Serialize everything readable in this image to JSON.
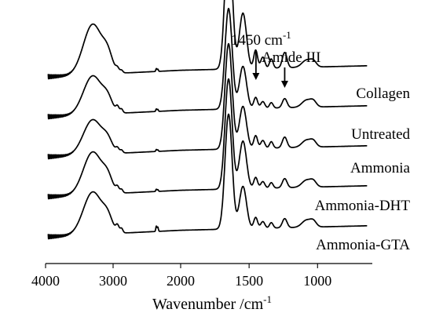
{
  "chart_data": {
    "type": "line",
    "xlabel": "Wavenumber /cm",
    "xlabel_sup": "-1",
    "xlim": [
      4000,
      600
    ],
    "x_reversed": true,
    "x_ticks": [
      4000,
      3000,
      2000,
      1500,
      1000
    ],
    "x_tick_labels": [
      "4000",
      "3000",
      "2000",
      "1500",
      "1000"
    ],
    "y_axis_shown": false,
    "grid": false,
    "series": [
      {
        "name": "Collagen",
        "offset": 4,
        "features": {
          "nh_strength": 1.3,
          "ch_strength": 0.4,
          "co2_strength": 0.5,
          "amide1_strength": 1.45,
          "amide2_strength": 1.05,
          "mid_peak_strength": 1.0
        }
      },
      {
        "name": "Untreated",
        "offset": 3,
        "features": {
          "nh_strength": 1.0,
          "ch_strength": 0.6,
          "co2_strength": 0.45,
          "amide1_strength": 1.05,
          "amide2_strength": 0.8,
          "mid_peak_strength": 0.6
        }
      },
      {
        "name": "Ammonia",
        "offset": 2,
        "features": {
          "nh_strength": 0.9,
          "ch_strength": 0.45,
          "co2_strength": 0.35,
          "amide1_strength": 1.1,
          "amide2_strength": 0.8,
          "mid_peak_strength": 0.7
        }
      },
      {
        "name": "Ammonia-DHT",
        "offset": 1,
        "features": {
          "nh_strength": 1.1,
          "ch_strength": 0.55,
          "co2_strength": 0.4,
          "amide1_strength": 1.15,
          "amide2_strength": 0.9,
          "mid_peak_strength": 0.6
        }
      },
      {
        "name": "Ammonia-GTA",
        "offset": 0,
        "features": {
          "nh_strength": 1.1,
          "ch_strength": 0.7,
          "co2_strength": 0.95,
          "amide1_strength": 1.2,
          "amide2_strength": 0.8,
          "mid_peak_strength": 0.6
        }
      }
    ],
    "annotations": [
      {
        "text": "1450 cm",
        "sup": "-1",
        "x": 1450
      },
      {
        "text": "Amide III",
        "x": 1240
      }
    ]
  }
}
